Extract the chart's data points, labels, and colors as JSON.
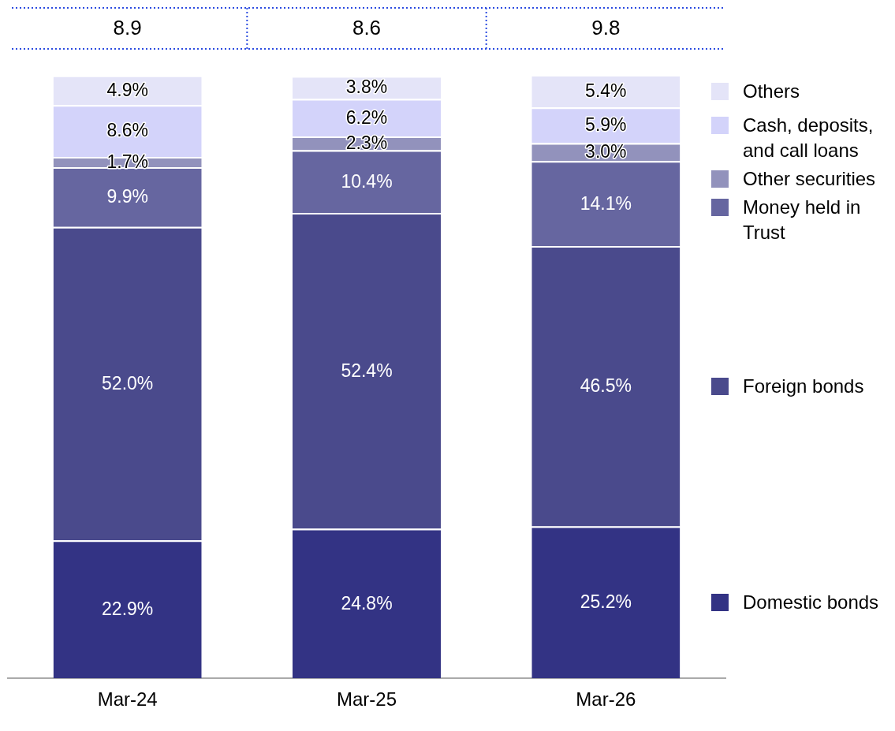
{
  "chart_data": {
    "type": "bar",
    "stacked": true,
    "categories": [
      "Mar-24",
      "Mar-25",
      "Mar-26"
    ],
    "series": [
      {
        "name": "Domestic bonds",
        "color": "#333384",
        "values": [
          22.9,
          24.8,
          25.2
        ],
        "value_labels": [
          "22.9%",
          "24.8%",
          "25.2%"
        ]
      },
      {
        "name": "Foreign bonds",
        "color": "#4a4a8c",
        "values": [
          52.0,
          52.4,
          46.5
        ],
        "value_labels": [
          "52.0%",
          "52.4%",
          "46.5%"
        ]
      },
      {
        "name": "Money held in Trust",
        "color": "#6666a0",
        "values": [
          9.9,
          10.4,
          14.1
        ],
        "value_labels": [
          "9.9%",
          "10.4%",
          "14.1%"
        ]
      },
      {
        "name": "Other securities",
        "color": "#9292bc",
        "values": [
          1.7,
          2.3,
          3.0
        ],
        "value_labels": [
          "1.7%",
          "2.3%",
          "3.0%"
        ]
      },
      {
        "name": "Cash, deposits, and call loans",
        "color": "#d3d3fa",
        "values": [
          8.6,
          6.2,
          5.9
        ],
        "value_labels": [
          "8.6%",
          "6.2%",
          "5.9%"
        ]
      },
      {
        "name": "Others",
        "color": "#e4e4f8",
        "values": [
          4.9,
          3.8,
          5.4
        ],
        "value_labels": [
          "4.9%",
          "3.8%",
          "5.4%"
        ]
      }
    ],
    "annotations": [
      "8.9",
      "8.6",
      "9.8"
    ],
    "tick_labels": "x",
    "grid": false,
    "legend": "right"
  }
}
